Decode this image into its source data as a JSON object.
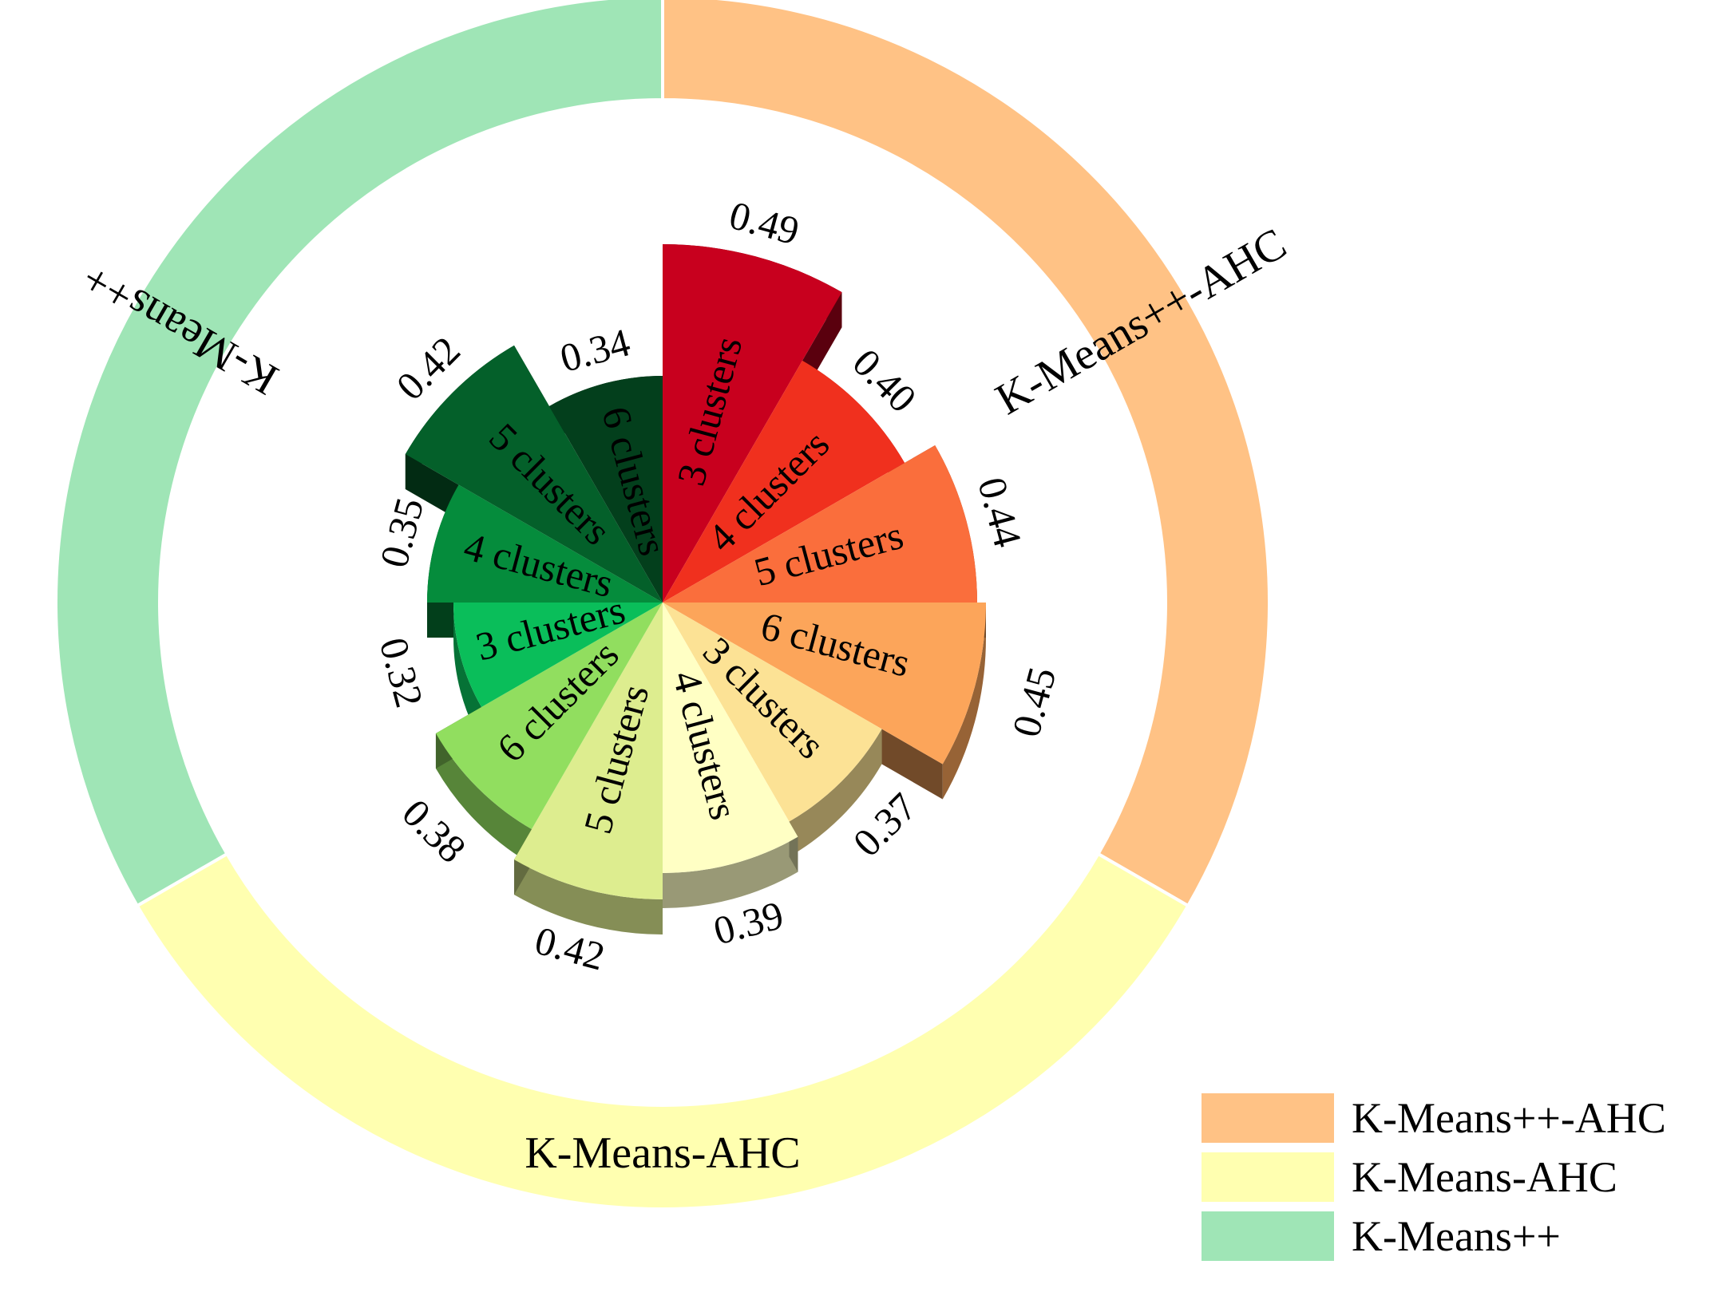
{
  "chart_data": {
    "type": "polar-bar",
    "metric_unit": "",
    "groups": [
      {
        "name": "K-Means++-AHC",
        "label": "K-Means++-AHC",
        "color": "#FFC285"
      },
      {
        "name": "K-Means-AHC",
        "label": "K-Means-AHC",
        "color": "#FFFFB0"
      },
      {
        "name": "K-Means++",
        "label": "K-Means++",
        "color": "#9FE5B6"
      }
    ],
    "segments": [
      {
        "group": "K-Means++-AHC",
        "clusters": "3 clusters",
        "value": 0.49,
        "value_label": "0.49",
        "color": "#C8001E"
      },
      {
        "group": "K-Means++-AHC",
        "clusters": "4 clusters",
        "value": 0.4,
        "value_label": "0.40",
        "color": "#F0301E"
      },
      {
        "group": "K-Means++-AHC",
        "clusters": "5 clusters",
        "value": 0.44,
        "value_label": "0.44",
        "color": "#FA6E3C"
      },
      {
        "group": "K-Means++-AHC",
        "clusters": "6 clusters",
        "value": 0.45,
        "value_label": "0.45",
        "color": "#FCA55A"
      },
      {
        "group": "K-Means-AHC",
        "clusters": "3 clusters",
        "value": 0.37,
        "value_label": "0.37",
        "color": "#FCE295"
      },
      {
        "group": "K-Means-AHC",
        "clusters": "4 clusters",
        "value": 0.39,
        "value_label": "0.39",
        "color": "#FFFFC4"
      },
      {
        "group": "K-Means-AHC",
        "clusters": "5 clusters",
        "value": 0.42,
        "value_label": "0.42",
        "color": "#DDED8F"
      },
      {
        "group": "K-Means-AHC",
        "clusters": "6 clusters",
        "value": 0.38,
        "value_label": "0.38",
        "color": "#91DE5F"
      },
      {
        "group": "K-Means++",
        "clusters": "3 clusters",
        "value": 0.32,
        "value_label": "0.32",
        "color": "#0ABE5A"
      },
      {
        "group": "K-Means++",
        "clusters": "4 clusters",
        "value": 0.35,
        "value_label": "0.35",
        "color": "#058C3C"
      },
      {
        "group": "K-Means++",
        "clusters": "5 clusters",
        "value": 0.42,
        "value_label": "0.42",
        "color": "#04602A"
      },
      {
        "group": "K-Means++",
        "clusters": "6 clusters",
        "value": 0.34,
        "value_label": "0.34",
        "color": "#033F1C"
      }
    ],
    "legend": {
      "position": "bottom-right",
      "entries": [
        {
          "label": "K-Means++-AHC",
          "color": "#FFC285"
        },
        {
          "label": "K-Means-AHC",
          "color": "#FFFFB0"
        },
        {
          "label": "K-Means++",
          "color": "#9FE5B6"
        }
      ]
    },
    "title": "",
    "xlabel": "",
    "ylabel": ""
  }
}
